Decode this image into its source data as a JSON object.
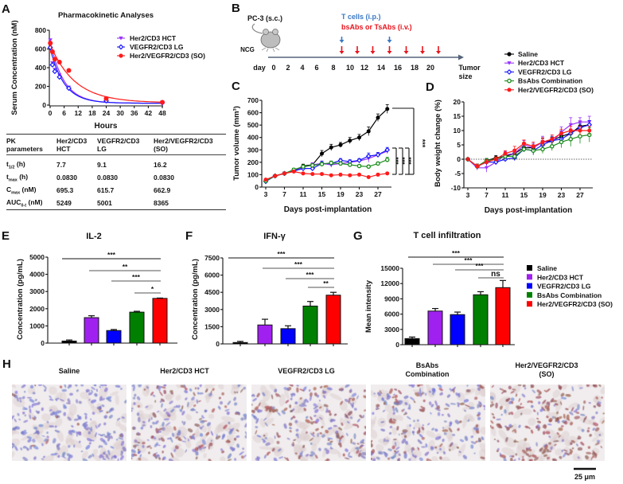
{
  "panel_labels": {
    "A": "A",
    "B": "B",
    "C": "C",
    "D": "D",
    "E": "E",
    "F": "F",
    "G": "G",
    "H": "H"
  },
  "groups": [
    {
      "name": "Saline",
      "color": "#000000",
      "bar_color": "#000000",
      "marker": "circle"
    },
    {
      "name": "Her2/CD3 HCT",
      "color": "#9933ff",
      "bar_color": "#a020f0",
      "marker": "triangle-down"
    },
    {
      "name": "VEGFR2/CD3 LG",
      "color": "#1a1aff",
      "bar_color": "#0000ff",
      "marker": "diamond-open"
    },
    {
      "name": "BsAbs Combination",
      "color": "#1a8c1a",
      "bar_color": "#008000",
      "marker": "circle-open"
    },
    {
      "name": "Her2/VEGFR2/CD3 (SO)",
      "color": "#ff1a1a",
      "bar_color": "#ff0000",
      "marker": "circle"
    }
  ],
  "pk_table": {
    "headers": [
      [
        "PK",
        "parameters"
      ],
      [
        "Her2/CD3",
        "HCT"
      ],
      [
        "VEGFR2/CD3",
        "LG"
      ],
      [
        "Her2/VEGFR2/CD3",
        "(SO)"
      ]
    ],
    "rows": [
      {
        "sym": "t",
        "sub": "1/2",
        "unit": " (h)",
        "values": [
          "7.7",
          "9.1",
          "16.2"
        ]
      },
      {
        "sym": "t",
        "sub": "max",
        "unit": " (h)",
        "values": [
          "0.0830",
          "0.0830",
          "0.0830"
        ]
      },
      {
        "sym": "C",
        "sub": "max",
        "unit": " (nM)",
        "values": [
          "695.3",
          "615.7",
          "662.9"
        ]
      },
      {
        "sym": "AUC",
        "sub": "0-t",
        "unit": " (nM)",
        "values": [
          "5249",
          "5001",
          "8365"
        ]
      }
    ]
  },
  "schematic": {
    "model": "PC-3 (s.c.)",
    "mouse": "NCG",
    "tcells": "T cells (i.p.)",
    "tcells_color": "#3a78c2",
    "abs": "bsAbs or TsAbs (i.v.)",
    "abs_color": "#e8141c",
    "day_label": "day",
    "days": [
      "0",
      "2",
      "4",
      "6",
      "8",
      "10",
      "12",
      "14",
      "16",
      "18",
      "20"
    ],
    "end_label": [
      "Tumor",
      "size"
    ],
    "tcell_days": [
      9,
      15
    ],
    "abs_days": [
      9,
      11,
      13,
      15,
      17,
      19,
      21
    ]
  },
  "chart_data": [
    {
      "type": "scatter",
      "title": "Pharmacokinetic Analyses",
      "xlabel": "Hours",
      "ylabel": "Serum Concentration (nM)",
      "xlim": [
        0,
        48
      ],
      "ylim": [
        0,
        800
      ],
      "xticks": [
        "0",
        "6",
        "12",
        "18",
        "24",
        "30",
        "36",
        "42",
        "48"
      ],
      "yticks": [
        "0",
        "200",
        "400",
        "600",
        "800"
      ],
      "legend": "top-right",
      "fit": "exponential decay",
      "series": [
        {
          "name": "Her2/CD3 HCT",
          "x": [
            0.083,
            1,
            2,
            4,
            8,
            24,
            48
          ],
          "y": [
            695,
            450,
            380,
            320,
            190,
            40,
            30
          ]
        },
        {
          "name": "VEGFR2/CD3 LG",
          "x": [
            0.083,
            1,
            2,
            4,
            8,
            24,
            48
          ],
          "y": [
            616,
            430,
            360,
            300,
            180,
            45,
            25
          ]
        },
        {
          "name": "Her2/VEGFR2/CD3 (SO)",
          "x": [
            0.083,
            1,
            2,
            4,
            8,
            24,
            48
          ],
          "y": [
            663,
            570,
            490,
            460,
            370,
            70,
            30
          ]
        }
      ]
    },
    {
      "type": "line",
      "xlabel": "Days post-implantation",
      "ylabel": "Tumor volume (mm³)",
      "xlim": [
        3,
        29
      ],
      "ylim": [
        0,
        700
      ],
      "xticks": [
        "3",
        "7",
        "11",
        "15",
        "19",
        "23",
        "27"
      ],
      "yticks": [
        "0",
        "100",
        "200",
        "300",
        "400",
        "500",
        "600",
        "700"
      ],
      "x": [
        3,
        5,
        7,
        9,
        11,
        13,
        15,
        17,
        19,
        21,
        23,
        25,
        27,
        29
      ],
      "series": [
        {
          "name": "Saline",
          "values": [
            50,
            90,
            110,
            130,
            170,
            180,
            270,
            320,
            340,
            375,
            400,
            450,
            560,
            630
          ],
          "error": [
            10,
            10,
            12,
            15,
            15,
            15,
            25,
            25,
            20,
            25,
            25,
            35,
            30,
            35
          ]
        },
        {
          "name": "Her2/CD3 HCT",
          "values": [
            55,
            90,
            110,
            130,
            160,
            180,
            190,
            180,
            190,
            200,
            210,
            230,
            260,
            290
          ],
          "error": [
            8,
            10,
            10,
            12,
            15,
            15,
            20,
            20,
            15,
            15,
            15,
            30,
            20,
            20
          ]
        },
        {
          "name": "VEGFR2/CD3 LG",
          "values": [
            45,
            90,
            110,
            130,
            150,
            150,
            190,
            190,
            215,
            205,
            215,
            250,
            260,
            300
          ],
          "error": [
            8,
            10,
            10,
            12,
            15,
            15,
            20,
            20,
            15,
            15,
            15,
            25,
            20,
            20
          ]
        },
        {
          "name": "BsAbs Combination",
          "values": [
            50,
            90,
            110,
            140,
            165,
            175,
            185,
            195,
            190,
            180,
            170,
            165,
            190,
            220
          ],
          "error": [
            8,
            10,
            10,
            12,
            15,
            15,
            15,
            15,
            15,
            15,
            12,
            12,
            12,
            20
          ]
        },
        {
          "name": "Her2/VEGFR2/CD3 (SO)",
          "values": [
            60,
            90,
            110,
            125,
            110,
            105,
            105,
            95,
            100,
            95,
            100,
            80,
            100,
            110
          ],
          "error": [
            8,
            10,
            10,
            10,
            10,
            10,
            10,
            10,
            10,
            10,
            10,
            8,
            10,
            10
          ]
        }
      ],
      "significance": [
        "***",
        "***",
        "***",
        "***"
      ]
    },
    {
      "type": "line",
      "xlabel": "Days post-implantation",
      "ylabel": "Body weight change (%)",
      "xlim": [
        3,
        29
      ],
      "ylim": [
        -10,
        20
      ],
      "xticks": [
        "3",
        "7",
        "11",
        "15",
        "19",
        "23",
        "27"
      ],
      "yticks": [
        "-10",
        "-5",
        "0",
        "5",
        "10",
        "15",
        "20"
      ],
      "x": [
        3,
        5,
        7,
        9,
        11,
        13,
        15,
        17,
        19,
        21,
        23,
        25,
        27,
        29
      ],
      "series": [
        {
          "name": "Saline",
          "values": [
            0,
            -2.5,
            -0.5,
            0.5,
            1,
            2,
            4,
            4,
            6,
            6.5,
            8,
            9,
            11.5,
            12
          ],
          "error": [
            0.3,
            0.8,
            0.8,
            0.8,
            1,
            1,
            1,
            1,
            1.2,
            1.2,
            1.5,
            1.5,
            1.5,
            1.5
          ]
        },
        {
          "name": "Her2/CD3 HCT",
          "values": [
            0,
            -3,
            -3,
            -1,
            1.5,
            2,
            5,
            4,
            6,
            6,
            9.5,
            12,
            13,
            13
          ],
          "error": [
            0.3,
            0.8,
            1.5,
            1,
            1.2,
            1.5,
            1.5,
            1.5,
            2,
            1.5,
            1.8,
            2.5,
            1.5,
            2
          ]
        },
        {
          "name": "VEGFR2/CD3 LG",
          "values": [
            0,
            -2.5,
            -1,
            -1,
            0,
            0.5,
            3.5,
            3,
            5,
            6.5,
            7,
            9,
            11,
            12
          ],
          "error": [
            0.3,
            0.8,
            1,
            0.8,
            0.8,
            1,
            1,
            1.5,
            1.5,
            1.5,
            1.5,
            1.5,
            1.5,
            1.5
          ]
        },
        {
          "name": "BsAbs Combination",
          "values": [
            0,
            -2.5,
            -0.5,
            0,
            1,
            1,
            3.5,
            3,
            3.5,
            4.5,
            6,
            7,
            8,
            8.5
          ],
          "error": [
            0.3,
            0.8,
            0.8,
            0.8,
            1,
            1,
            1,
            1.5,
            1.5,
            1.5,
            2,
            2.5,
            2.5,
            2.5
          ]
        },
        {
          "name": "Her2/VEGFR2/CD3 (SO)",
          "values": [
            0,
            -2.5,
            -1,
            0,
            2,
            3,
            5.5,
            4.5,
            6,
            7,
            9,
            10,
            10,
            10
          ],
          "error": [
            0.3,
            0.8,
            0.8,
            0.8,
            1,
            1.5,
            1.2,
            1.5,
            1.5,
            1.5,
            1.5,
            1.5,
            1.5,
            1.5
          ]
        }
      ]
    },
    {
      "type": "bar",
      "title": "IL-2",
      "ylabel": "Concentration (pg/mL)",
      "ylim": [
        0,
        5000
      ],
      "yticks": [
        "0",
        "1000",
        "2000",
        "3000",
        "4000",
        "5000"
      ],
      "categories": [
        "Saline",
        "Her2/CD3 HCT",
        "VEGFR2/CD3 LG",
        "BsAbs Combination",
        "Her2/VEGFR2/CD3 (SO)"
      ],
      "values": [
        120,
        1480,
        730,
        1800,
        2600
      ],
      "error": [
        60,
        110,
        60,
        50,
        20
      ],
      "significance": [
        {
          "from": 0,
          "to": 4,
          "label": "***"
        },
        {
          "from": 1,
          "to": 4,
          "label": "**"
        },
        {
          "from": 2,
          "to": 4,
          "label": "***"
        },
        {
          "from": 3,
          "to": 4,
          "label": "*"
        }
      ]
    },
    {
      "type": "bar",
      "title": "IFN-γ",
      "ylabel": "Concentration (pg/mL)",
      "ylim": [
        0,
        7500
      ],
      "yticks": [
        "0",
        "1500",
        "3000",
        "4500",
        "6000",
        "7500"
      ],
      "categories": [
        "Saline",
        "Her2/CD3 HCT",
        "VEGFR2/CD3 LG",
        "BsAbs Combination",
        "Her2/VEGFR2/CD3 (SO)"
      ],
      "values": [
        120,
        1650,
        1330,
        3300,
        4250
      ],
      "error": [
        100,
        500,
        250,
        400,
        250
      ],
      "significance": [
        {
          "from": 0,
          "to": 4,
          "label": "***"
        },
        {
          "from": 1,
          "to": 4,
          "label": "***"
        },
        {
          "from": 2,
          "to": 4,
          "label": "***"
        },
        {
          "from": 3,
          "to": 4,
          "label": "**"
        }
      ]
    },
    {
      "type": "bar",
      "title": "T cell infiltration",
      "ylabel": "Mean intensity",
      "ylim": [
        0,
        15000
      ],
      "yticks": [
        "0",
        "3000",
        "6000",
        "9000",
        "12000",
        "15000"
      ],
      "categories": [
        "Saline",
        "Her2/CD3 HCT",
        "VEGFR2/CD3 LG",
        "BsAbs Combination",
        "Her2/VEGFR2/CD3 (SO)"
      ],
      "values": [
        1200,
        6600,
        5900,
        9800,
        11200
      ],
      "error": [
        300,
        500,
        500,
        600,
        1400
      ],
      "legend": "right",
      "significance": [
        {
          "from": 0,
          "to": 4,
          "label": "***"
        },
        {
          "from": 1,
          "to": 4,
          "label": "***"
        },
        {
          "from": 2,
          "to": 4,
          "label": "***"
        },
        {
          "from": 3,
          "to": 4,
          "label": "ns"
        }
      ]
    }
  ],
  "micrographs": {
    "captions": [
      [
        "Saline"
      ],
      [
        "Her2/CD3 HCT"
      ],
      [
        "VEGFR2/CD3 LG"
      ],
      [
        "BsAbs",
        "Combination"
      ],
      [
        "Her2/VEGFR2/CD3",
        "(SO)"
      ]
    ],
    "staining_level": [
      "low",
      "moderate",
      "moderate",
      "moderate",
      "high"
    ],
    "scale_bar": "25 μm"
  }
}
